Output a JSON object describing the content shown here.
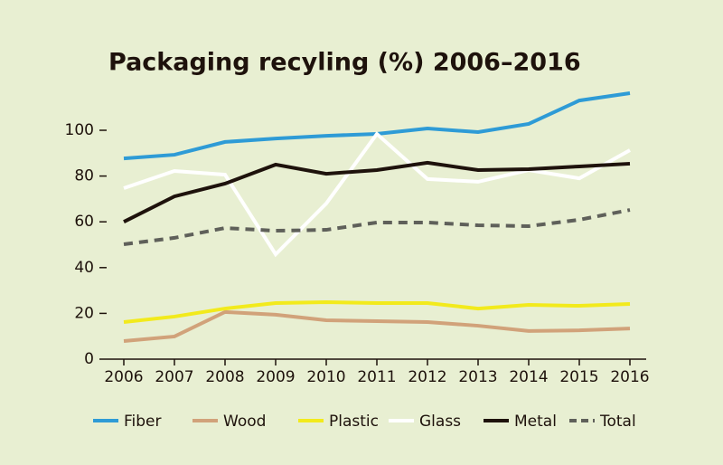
{
  "chart_data": {
    "type": "line",
    "title": "Packaging recyling (%) 2006–2016",
    "categories": [
      "2006",
      "2007",
      "2008",
      "2009",
      "2010",
      "2011",
      "2012",
      "2013",
      "2014",
      "2015",
      "2016"
    ],
    "ylim": [
      0,
      118
    ],
    "yticks": [
      0,
      20,
      40,
      60,
      80,
      100
    ],
    "grid": false,
    "legend": "bottom",
    "series": [
      {
        "name": "Fiber",
        "color": "#2e9bd6",
        "values": [
          87.7,
          89.3,
          94.9,
          96.4,
          97.6,
          98.4,
          100.8,
          99.2,
          102.8,
          113,
          116.2
        ]
      },
      {
        "name": "Wood",
        "color": "#d1a27a",
        "values": [
          7.9,
          9.9,
          20.6,
          19.4,
          17,
          16.6,
          16.2,
          14.6,
          12.3,
          12.6,
          13.4
        ]
      },
      {
        "name": "Plastic",
        "color": "#f2ea1c",
        "values": [
          16.2,
          18.6,
          22.1,
          24.5,
          24.9,
          24.5,
          24.5,
          22.1,
          23.7,
          23.3,
          24.1
        ]
      },
      {
        "name": "Glass",
        "color": "#ffffff",
        "values": [
          74.7,
          82.2,
          80.6,
          45.8,
          68,
          98.4,
          78.7,
          77.5,
          82.6,
          79,
          91.3
        ]
      },
      {
        "name": "Metal",
        "color": "#1e120c",
        "values": [
          60,
          71.1,
          76.7,
          85,
          81,
          82.6,
          85.8,
          82.6,
          83,
          84.2,
          85.4
        ]
      },
      {
        "name": "Total",
        "color": "#5f605a",
        "dashed": true,
        "values": [
          50.2,
          53,
          57.3,
          56.1,
          56.5,
          59.7,
          59.7,
          58.5,
          58.1,
          60.9,
          65.2
        ]
      }
    ]
  }
}
